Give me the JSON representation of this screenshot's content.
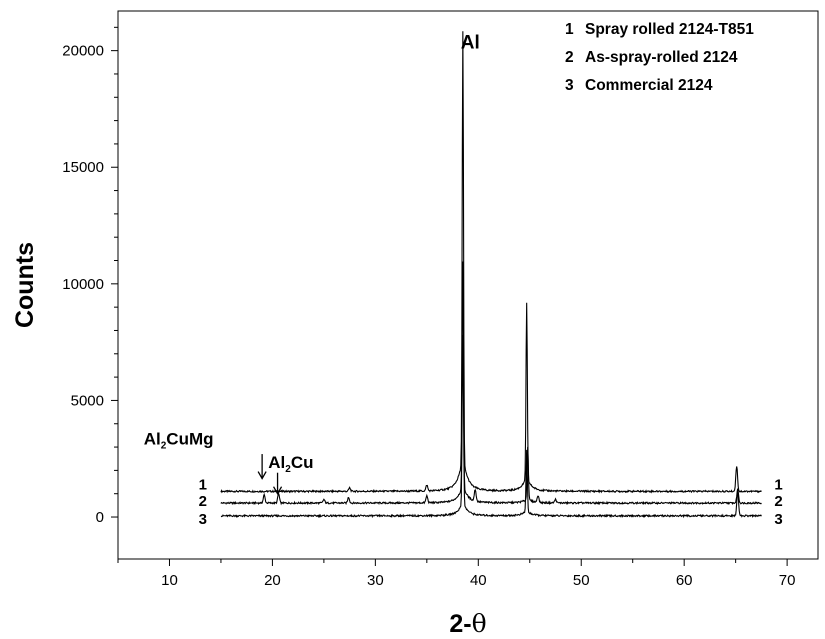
{
  "chart_data": {
    "type": "line",
    "title": "",
    "xlabel_prefix": "2-",
    "xlabel_symbol": "θ",
    "ylabel": "Counts",
    "xlim": [
      5,
      73
    ],
    "ylim": [
      -1800,
      21700
    ],
    "x_ticks": [
      "10",
      "20",
      "30",
      "40",
      "50",
      "60",
      "70"
    ],
    "y_ticks": [
      "0",
      "5000",
      "10000",
      "15000",
      "20000"
    ],
    "grid": false,
    "legend_position": "top-right",
    "legend": [
      {
        "num": "1",
        "text": "Spray rolled 2124-T851"
      },
      {
        "num": "2",
        "text": "As-spray-rolled 2124"
      },
      {
        "num": "3",
        "text": "Commercial 2124"
      }
    ],
    "series": [
      {
        "label": "1",
        "baseline": 1100,
        "x_range": [
          15,
          67.5
        ],
        "peaks": [
          {
            "x": 38.5,
            "y": 19700
          },
          {
            "x": 44.7,
            "y": 8700
          },
          {
            "x": 65.1,
            "y": 2200
          },
          {
            "x": 35.0,
            "y": 1350
          },
          {
            "x": 27.5,
            "y": 1250
          }
        ]
      },
      {
        "label": "2",
        "baseline": 600,
        "x_range": [
          15,
          67.5
        ],
        "peaks": [
          {
            "x": 19.2,
            "y": 950
          },
          {
            "x": 20.6,
            "y": 1000
          },
          {
            "x": 25.0,
            "y": 750
          },
          {
            "x": 27.4,
            "y": 850
          },
          {
            "x": 35.0,
            "y": 900
          },
          {
            "x": 38.5,
            "y": 10400
          },
          {
            "x": 39.7,
            "y": 1100
          },
          {
            "x": 44.8,
            "y": 2900
          },
          {
            "x": 45.8,
            "y": 900
          },
          {
            "x": 47.5,
            "y": 750
          },
          {
            "x": 65.2,
            "y": 1200
          }
        ]
      },
      {
        "label": "3",
        "baseline": 50,
        "x_range": [
          15,
          67.5
        ],
        "peaks": [
          {
            "x": 38.5,
            "y": 7400
          },
          {
            "x": 44.7,
            "y": 2700
          },
          {
            "x": 65.2,
            "y": 1100
          }
        ]
      }
    ],
    "annotations": [
      {
        "text": "Al",
        "x": 38.3,
        "y": 20100,
        "size": 19
      },
      {
        "text": "Al",
        "sub": "2",
        "rest": "CuMg",
        "x": 7.5,
        "y": 3100,
        "size": 17
      },
      {
        "text": "Al",
        "sub": "2",
        "rest": "Cu",
        "x": 19.6,
        "y": 2100,
        "size": 17
      }
    ],
    "arrows": [
      {
        "x": 19.0,
        "y_from": 2700,
        "y_to": 1650
      },
      {
        "x": 20.5,
        "y_from": 1900,
        "y_to": 1000
      }
    ]
  }
}
